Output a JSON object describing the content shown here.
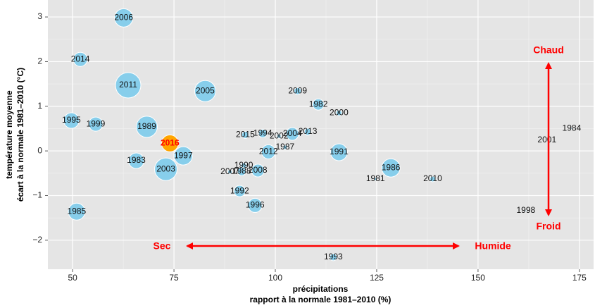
{
  "chart_data": {
    "type": "scatter",
    "xlabel": [
      "précipitations",
      "rapport à la normale 1981–2010 (%)"
    ],
    "ylabel": [
      "température moyenne",
      "écart à la normale 1981–2010 (°C)"
    ],
    "labels": [
      "2006",
      "2014",
      "2011",
      "2005",
      "2009",
      "1982",
      "2000",
      "1995",
      "1999",
      "1989",
      "1984",
      "2015",
      "1994",
      "2002",
      "2004",
      "2013",
      "2001",
      "2016",
      "1997",
      "1987",
      "2012",
      "1991",
      "1983",
      "1990",
      "2003",
      "2007",
      "1988",
      "2008",
      "1986",
      "1981",
      "2010",
      "1992",
      "1996",
      "1998",
      "1985",
      "1993"
    ],
    "x": [
      62.6,
      51.9,
      63.7,
      82.7,
      105.5,
      110.6,
      115.7,
      49.7,
      55.7,
      68.3,
      173.1,
      92.6,
      96.9,
      100.9,
      104.2,
      108.0,
      167.0,
      74.0,
      77.3,
      102.4,
      98.3,
      115.7,
      65.7,
      92.2,
      73.0,
      88.8,
      91.7,
      95.7,
      128.5,
      124.7,
      138.8,
      91.2,
      95.0,
      161.8,
      51.0,
      114.3
    ],
    "values": [
      2.98,
      2.05,
      1.47,
      1.34,
      1.34,
      1.04,
      0.85,
      0.68,
      0.6,
      0.54,
      0.5,
      0.36,
      0.39,
      0.33,
      0.38,
      0.43,
      0.24,
      0.17,
      -0.11,
      0.08,
      -0.02,
      -0.03,
      -0.22,
      -0.33,
      -0.41,
      -0.47,
      -0.46,
      -0.44,
      -0.38,
      -0.63,
      -0.63,
      -0.9,
      -1.22,
      -1.34,
      -1.36,
      -2.38
    ],
    "sizes": [
      13,
      10,
      18,
      15,
      5,
      8,
      4,
      11,
      10,
      15,
      1,
      5,
      6,
      3,
      9,
      5,
      1,
      12,
      13,
      3,
      10,
      12,
      11,
      4,
      16,
      3,
      6,
      9,
      13,
      2,
      4,
      8,
      10,
      1,
      12,
      5
    ],
    "colors": [
      "#87ceeb",
      "#87ceeb",
      "#87ceeb",
      "#87ceeb",
      "#87ceeb",
      "#87ceeb",
      "#87ceeb",
      "#87ceeb",
      "#87ceeb",
      "#87ceeb",
      "#87ceeb",
      "#87ceeb",
      "#87ceeb",
      "#87ceeb",
      "#87ceeb",
      "#87ceeb",
      "#87ceeb",
      "#ffa500",
      "#87ceeb",
      "#87ceeb",
      "#87ceeb",
      "#87ceeb",
      "#87ceeb",
      "#87ceeb",
      "#87ceeb",
      "#87ceeb",
      "#87ceeb",
      "#87ceeb",
      "#87ceeb",
      "#87ceeb",
      "#87ceeb",
      "#87ceeb",
      "#87ceeb",
      "#87ceeb",
      "#87ceeb",
      "#87ceeb"
    ],
    "xlim": [
      43.9,
      178.5
    ],
    "ylim": [
      -2.65,
      3.38
    ],
    "xticks": [
      50,
      75,
      100,
      125,
      150,
      175
    ],
    "yticks": [
      {
        "value": -2,
        "label": "−2"
      },
      {
        "value": -1,
        "label": "−1"
      },
      0,
      1,
      2,
      3
    ],
    "grid": true,
    "annotations": {
      "hot": "Chaud",
      "cold": "Froid",
      "dry": "Sec",
      "wet": "Humide"
    }
  }
}
